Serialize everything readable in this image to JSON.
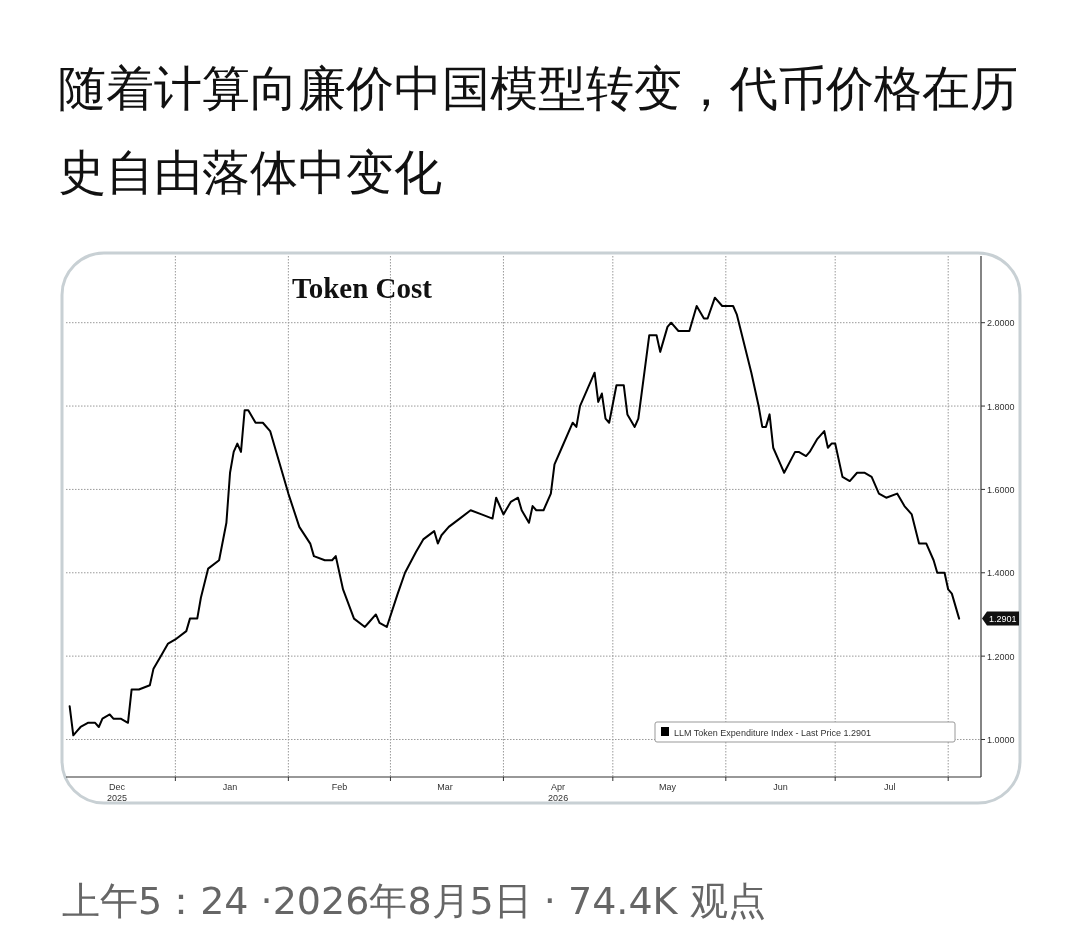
{
  "chart_data": {
    "type": "line",
    "title": "随着计算向廉价中国模型转变，代币价格在历史自由落体中变化",
    "subtitle": "Token Cost",
    "x": [
      "2025-12-03",
      "2025-12-04",
      "2025-12-05",
      "2025-12-06",
      "2025-12-08",
      "2025-12-10",
      "2025-12-11",
      "2025-12-12",
      "2025-12-14",
      "2025-12-15",
      "2025-12-17",
      "2025-12-19",
      "2025-12-20",
      "2025-12-22",
      "2025-12-25",
      "2025-12-26",
      "2025-12-28",
      "2025-12-30",
      "2026-01-01",
      "2026-01-04",
      "2026-01-05",
      "2026-01-07",
      "2026-01-08",
      "2026-01-10",
      "2026-01-13",
      "2026-01-15",
      "2026-01-16",
      "2026-01-17",
      "2026-01-18",
      "2026-01-19",
      "2026-01-20",
      "2026-01-21",
      "2026-01-23",
      "2026-01-25",
      "2026-01-27",
      "2026-01-29",
      "2026-02-01",
      "2026-02-04",
      "2026-02-07",
      "2026-02-08",
      "2026-02-11",
      "2026-02-13",
      "2026-02-14",
      "2026-02-16",
      "2026-02-19",
      "2026-02-22",
      "2026-02-23",
      "2026-02-25",
      "2026-02-26",
      "2026-02-28",
      "2026-03-03",
      "2026-03-05",
      "2026-03-08",
      "2026-03-10",
      "2026-03-13",
      "2026-03-14",
      "2026-03-15",
      "2026-03-17",
      "2026-03-20",
      "2026-03-23",
      "2026-03-26",
      "2026-03-29",
      "2026-03-30",
      "2026-04-01",
      "2026-04-03",
      "2026-04-05",
      "2026-04-06",
      "2026-04-08",
      "2026-04-09",
      "2026-04-10",
      "2026-04-12",
      "2026-04-14",
      "2026-04-15",
      "2026-04-17",
      "2026-04-20",
      "2026-04-21",
      "2026-04-22",
      "2026-04-24",
      "2026-04-26",
      "2026-04-27",
      "2026-04-28",
      "2026-04-29",
      "2026-04-30",
      "2026-05-02",
      "2026-05-04",
      "2026-05-05",
      "2026-05-07",
      "2026-05-08",
      "2026-05-11",
      "2026-05-13",
      "2026-05-14",
      "2026-05-16",
      "2026-05-17",
      "2026-05-19",
      "2026-05-22",
      "2026-05-24",
      "2026-05-26",
      "2026-05-27",
      "2026-05-29",
      "2026-05-31",
      "2026-06-02",
      "2026-06-03",
      "2026-06-04",
      "2026-06-08",
      "2026-06-10",
      "2026-06-11",
      "2026-06-12",
      "2026-06-13",
      "2026-06-14",
      "2026-06-16",
      "2026-06-17",
      "2026-06-20",
      "2026-06-21",
      "2026-06-23",
      "2026-06-24",
      "2026-06-26",
      "2026-06-28",
      "2026-06-29",
      "2026-06-30",
      "2026-07-01",
      "2026-07-03",
      "2026-07-05",
      "2026-07-07",
      "2026-07-09",
      "2026-07-11",
      "2026-07-13",
      "2026-07-15",
      "2026-07-18",
      "2026-07-20",
      "2026-07-22",
      "2026-07-24",
      "2026-07-26",
      "2026-07-28",
      "2026-07-29",
      "2026-07-31",
      "2026-08-01",
      "2026-08-02",
      "2026-08-04"
    ],
    "series": [
      {
        "name": "LLM Token Expenditure Index - Last Price 1.2901",
        "color": "#000000",
        "values": [
          1.08,
          1.01,
          1.02,
          1.03,
          1.04,
          1.04,
          1.03,
          1.05,
          1.06,
          1.05,
          1.05,
          1.04,
          1.12,
          1.12,
          1.13,
          1.17,
          1.2,
          1.23,
          1.24,
          1.26,
          1.29,
          1.29,
          1.34,
          1.41,
          1.43,
          1.52,
          1.64,
          1.69,
          1.71,
          1.69,
          1.79,
          1.79,
          1.76,
          1.76,
          1.74,
          1.68,
          1.59,
          1.51,
          1.47,
          1.44,
          1.43,
          1.43,
          1.44,
          1.36,
          1.29,
          1.27,
          1.28,
          1.3,
          1.28,
          1.27,
          1.35,
          1.4,
          1.45,
          1.48,
          1.5,
          1.47,
          1.49,
          1.51,
          1.53,
          1.55,
          1.54,
          1.53,
          1.58,
          1.54,
          1.57,
          1.58,
          1.55,
          1.52,
          1.56,
          1.55,
          1.55,
          1.59,
          1.66,
          1.7,
          1.76,
          1.75,
          1.8,
          1.84,
          1.88,
          1.81,
          1.83,
          1.77,
          1.76,
          1.85,
          1.85,
          1.78,
          1.75,
          1.77,
          1.97,
          1.97,
          1.93,
          1.99,
          2.0,
          1.98,
          1.98,
          2.04,
          2.01,
          2.01,
          2.06,
          2.04,
          2.04,
          2.04,
          2.02,
          1.88,
          1.8,
          1.75,
          1.75,
          1.78,
          1.7,
          1.66,
          1.64,
          1.69,
          1.69,
          1.68,
          1.69,
          1.72,
          1.74,
          1.7,
          1.71,
          1.71,
          1.63,
          1.62,
          1.64,
          1.64,
          1.63,
          1.59,
          1.58,
          1.59,
          1.56,
          1.54,
          1.47,
          1.47,
          1.43,
          1.4,
          1.4,
          1.36,
          1.35,
          1.29
        ]
      }
    ],
    "xlim": [
      "2025-12-02",
      "2026-08-10"
    ],
    "xticks": [
      {
        "value": "2025-12-16",
        "label": "Dec\n2025"
      },
      {
        "value": "2026-01-01",
        "label": null
      },
      {
        "value": "2026-01-16",
        "label": "Jan"
      },
      {
        "value": "2026-02-01",
        "label": null
      },
      {
        "value": "2026-02-15",
        "label": "Feb"
      },
      {
        "value": "2026-03-01",
        "label": null
      },
      {
        "value": "2026-03-16",
        "label": "Mar"
      },
      {
        "value": "2026-04-01",
        "label": null
      },
      {
        "value": "2026-04-16",
        "label": "Apr\n2026"
      },
      {
        "value": "2026-05-01",
        "label": null
      },
      {
        "value": "2026-05-16",
        "label": "May"
      },
      {
        "value": "2026-06-01",
        "label": null
      },
      {
        "value": "2026-06-16",
        "label": "Jun"
      },
      {
        "value": "2026-07-01",
        "label": null
      },
      {
        "value": "2026-07-16",
        "label": "Jul"
      },
      {
        "value": "2026-08-01",
        "label": null
      }
    ],
    "ylim": [
      0.91,
      2.16
    ],
    "yticks": [
      {
        "value": 1,
        "label": "1.0000"
      },
      {
        "value": 1.2,
        "label": "1.2000"
      },
      {
        "value": 1.4,
        "label": "1.4000"
      },
      {
        "value": 1.6,
        "label": "1.6000"
      },
      {
        "value": 1.8,
        "label": "1.8000"
      },
      {
        "value": 2,
        "label": "2.0000"
      }
    ],
    "grid": true,
    "legend": "bottom right",
    "annotations": [
      "1.2901",
      "上午5：24 ·2026年8月5日 · 74.4K 观点"
    ]
  }
}
